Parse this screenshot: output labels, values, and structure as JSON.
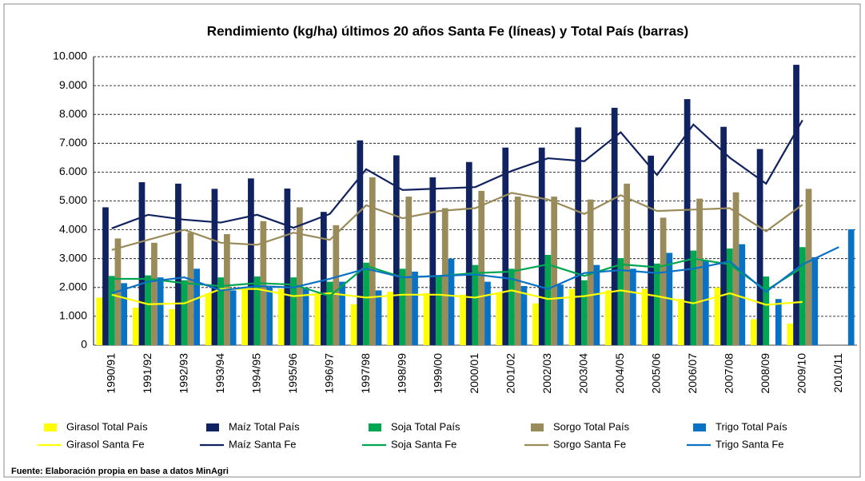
{
  "chart_data": {
    "type": "bar",
    "title": "Rendimiento (kg/ha) últimos 20 años Santa Fe (líneas) y Total País (barras)",
    "source": "Fuente: Elaboración propia en base a datos MinAgri",
    "categories": [
      "1990/91",
      "1991/92",
      "1992/93",
      "1993/94",
      "1994/95",
      "1995/96",
      "1996/97",
      "1997/98",
      "1998/99",
      "1999/00",
      "2000/01",
      "2001/02",
      "2002/03",
      "2003/04",
      "2004/05",
      "2005/06",
      "2006/07",
      "2007/08",
      "2008/09",
      "2009/10",
      "2010/11"
    ],
    "ylim": [
      0,
      10000
    ],
    "yticks": [
      0,
      {
        "value": 1000,
        "label": "1.000"
      },
      {
        "value": 2000,
        "label": "2.000"
      },
      {
        "value": 3000,
        "label": "3.000"
      },
      {
        "value": 4000,
        "label": "4.000"
      },
      {
        "value": 5000,
        "label": "5.000"
      },
      {
        "value": 6000,
        "label": "6.000"
      },
      {
        "value": 7000,
        "label": "7.000"
      },
      {
        "value": 8000,
        "label": "8.000"
      },
      {
        "value": 9000,
        "label": "9.000"
      },
      {
        "value": 10000,
        "label": "10.000"
      }
    ],
    "grid": true,
    "series": [
      {
        "name": "Girasol Total País",
        "type": "bar",
        "color": "#ffff00",
        "values": [
          1650,
          1300,
          1250,
          1800,
          1950,
          1950,
          1800,
          1420,
          1850,
          1800,
          1750,
          1800,
          1450,
          1950,
          1900,
          1950,
          1600,
          2000,
          900,
          750,
          null
        ]
      },
      {
        "name": "Maíz Total País",
        "type": "bar",
        "color": "#10225f",
        "values": [
          4780,
          5650,
          5600,
          5420,
          5780,
          5430,
          4620,
          7100,
          6580,
          5820,
          6350,
          6850,
          6850,
          7550,
          8230,
          6570,
          8530,
          7570,
          6800,
          9720,
          null
        ]
      },
      {
        "name": "Soja Total País",
        "type": "bar",
        "color": "#00a651",
        "values": [
          2400,
          2420,
          2250,
          2350,
          2380,
          2350,
          2200,
          2860,
          2650,
          2400,
          2780,
          2650,
          3130,
          2250,
          3020,
          2830,
          3280,
          3350,
          2380,
          3400,
          null
        ]
      },
      {
        "name": "Sorgo Total País",
        "type": "bar",
        "color": "#9a8b5a",
        "values": [
          3700,
          3550,
          3900,
          3850,
          4300,
          4780,
          4160,
          5820,
          5150,
          4750,
          5350,
          5150,
          5150,
          5050,
          5600,
          4420,
          5080,
          5300,
          null,
          5420,
          null
        ]
      },
      {
        "name": "Trigo Total País",
        "type": "bar",
        "color": "#0a72c4",
        "values": [
          2150,
          2350,
          2650,
          1900,
          2000,
          2000,
          2200,
          1900,
          2550,
          3000,
          2200,
          2050,
          2100,
          2780,
          2650,
          3200,
          2950,
          3500,
          1600,
          3050,
          4020
        ]
      },
      {
        "name": "Girasol Santa Fe",
        "type": "line",
        "color": "#ffff00",
        "values": [
          1750,
          1420,
          1450,
          1950,
          1950,
          1700,
          1800,
          1650,
          1750,
          1750,
          1650,
          1900,
          1600,
          1700,
          1900,
          1700,
          1450,
          1800,
          1400,
          1500,
          null
        ]
      },
      {
        "name": "Maíz Santa Fe",
        "type": "line",
        "color": "#10225f",
        "values": [
          4050,
          4520,
          4350,
          4250,
          4520,
          4070,
          4550,
          6100,
          5380,
          5430,
          5480,
          6040,
          6480,
          6380,
          7380,
          5900,
          7650,
          6500,
          5600,
          7800,
          null
        ]
      },
      {
        "name": "Soja Santa Fe",
        "type": "line",
        "color": "#00a651",
        "values": [
          2300,
          2300,
          2150,
          2050,
          2150,
          2100,
          1700,
          2750,
          2350,
          2400,
          2500,
          2550,
          2800,
          2400,
          2800,
          2700,
          3000,
          2800,
          1900,
          2700,
          null
        ]
      },
      {
        "name": "Sorgo Santa Fe",
        "type": "line",
        "color": "#9a8b5a",
        "values": [
          3300,
          3650,
          4000,
          3550,
          3480,
          3900,
          3650,
          4850,
          4400,
          4650,
          4750,
          5280,
          5050,
          4550,
          5200,
          4650,
          4700,
          4750,
          3950,
          4870,
          null
        ]
      },
      {
        "name": "Trigo Santa Fe",
        "type": "line",
        "color": "#0a72c4",
        "values": [
          1800,
          2200,
          2350,
          1900,
          2050,
          2000,
          2300,
          2650,
          2350,
          2400,
          2450,
          2300,
          1950,
          2500,
          2600,
          2500,
          2650,
          2900,
          1850,
          2800,
          3400
        ]
      }
    ]
  }
}
